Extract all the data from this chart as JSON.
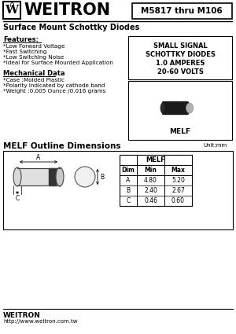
{
  "title_company": "WEITRON",
  "part_number": "M5817 thru M106",
  "subtitle": "Surface Mount Schottky Diodes",
  "features_title": "Features:",
  "features": [
    "*Low Forward Voltage",
    "*Fast Switching",
    "*Low Switching Noise",
    "*Ideal for Surface Mounted Application"
  ],
  "mech_title": "Mechanical Data",
  "mech_data": [
    "*Case :Molded Plastic",
    "*Polarity indicated by cathode band",
    "*Weight :0.005 Ounce /0.016 grams"
  ],
  "spec_box": [
    "SMALL SIGNAL",
    "SCHOTTKY DIODES",
    "1.0 AMPERES",
    "20-60 VOLTS"
  ],
  "package_label": "MELF",
  "outline_title": "MELF Outline Dimensions",
  "unit_label": "Unit:mm",
  "table_title": "MELF",
  "table_headers": [
    "Dim",
    "Min",
    "Max"
  ],
  "table_rows": [
    [
      "A",
      "4.80",
      "5.20"
    ],
    [
      "B",
      "2.40",
      "2.67"
    ],
    [
      "C",
      "0.46",
      "0.60"
    ]
  ],
  "footer_company": "WEITRON",
  "footer_url": "http://www.weitron.com.tw",
  "bg_color": "#ffffff"
}
